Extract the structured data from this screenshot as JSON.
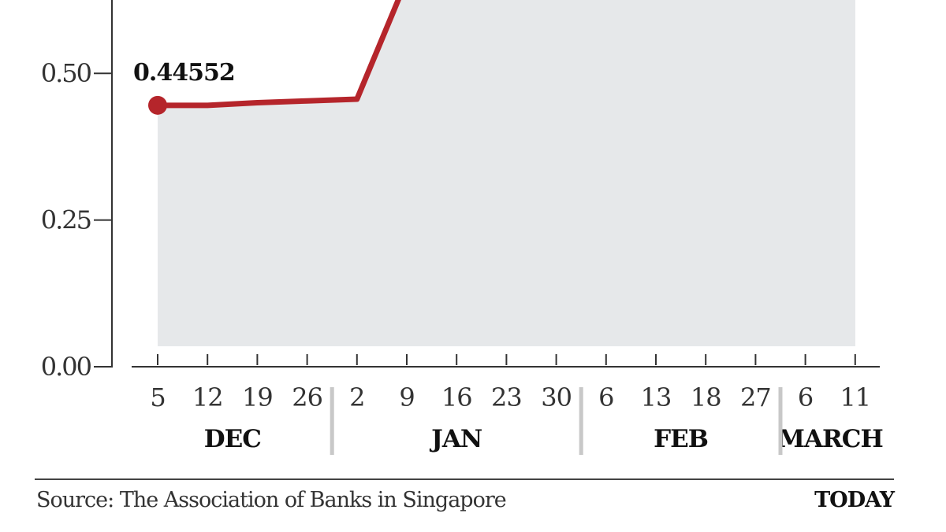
{
  "chart_data": {
    "type": "area",
    "yticks": [
      {
        "value": 0.0,
        "label": "0.00"
      },
      {
        "value": 0.25,
        "label": "0.25"
      },
      {
        "value": 0.5,
        "label": "0.50"
      }
    ],
    "ylim": [
      0,
      0.62
    ],
    "x_ticks": [
      "5",
      "12",
      "19",
      "26",
      "2",
      "9",
      "16",
      "23",
      "30",
      "6",
      "13",
      "18",
      "27",
      "6",
      "11"
    ],
    "months": [
      {
        "label": "DEC",
        "from": 0,
        "to": 3
      },
      {
        "label": "JAN",
        "from": 4,
        "to": 8
      },
      {
        "label": "FEB",
        "from": 9,
        "to": 12
      },
      {
        "label": "MARCH",
        "from": 13,
        "to": 14
      }
    ],
    "series": [
      {
        "color": "#b5252b",
        "area_color": "#e6e8ea",
        "points": [
          [
            0,
            0.44552
          ],
          [
            1,
            0.4455
          ],
          [
            2,
            0.45
          ],
          [
            3,
            0.453
          ],
          [
            4,
            0.456
          ],
          [
            5,
            0.66
          ]
        ]
      }
    ],
    "annotation": {
      "index": 0,
      "label": "0.44552"
    },
    "grid": false
  },
  "footer": {
    "source": "Source: The Association of Banks in Singapore",
    "brand": "TODAY"
  }
}
